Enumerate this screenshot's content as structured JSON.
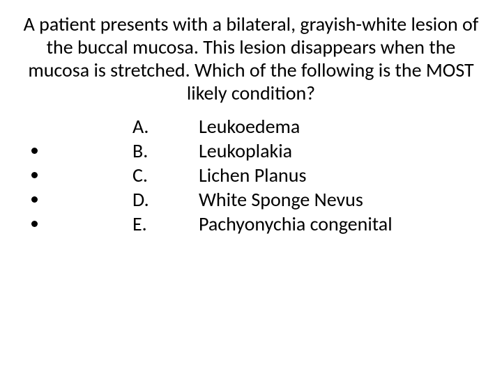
{
  "question": "A patient presents with a bilateral, grayish-white lesion of the buccal mucosa.  This lesion disappears when the mucosa is stretched. Which of the following is the MOST likely condition?",
  "answers": [
    {
      "letter": "A.",
      "text": "Leukoedema"
    },
    {
      "letter": "B.",
      "text": "Leukoplakia"
    },
    {
      "letter": "C.",
      "text": "Lichen Planus"
    },
    {
      "letter": "D.",
      "text": "White Sponge Nevus"
    },
    {
      "letter": "E.",
      "text": "Pachyonychia congenital"
    }
  ],
  "style": {
    "background_color": "#ffffff",
    "text_color": "#000000",
    "question_fontsize": 28,
    "answer_fontsize": 28,
    "font_family": "Calibri"
  }
}
